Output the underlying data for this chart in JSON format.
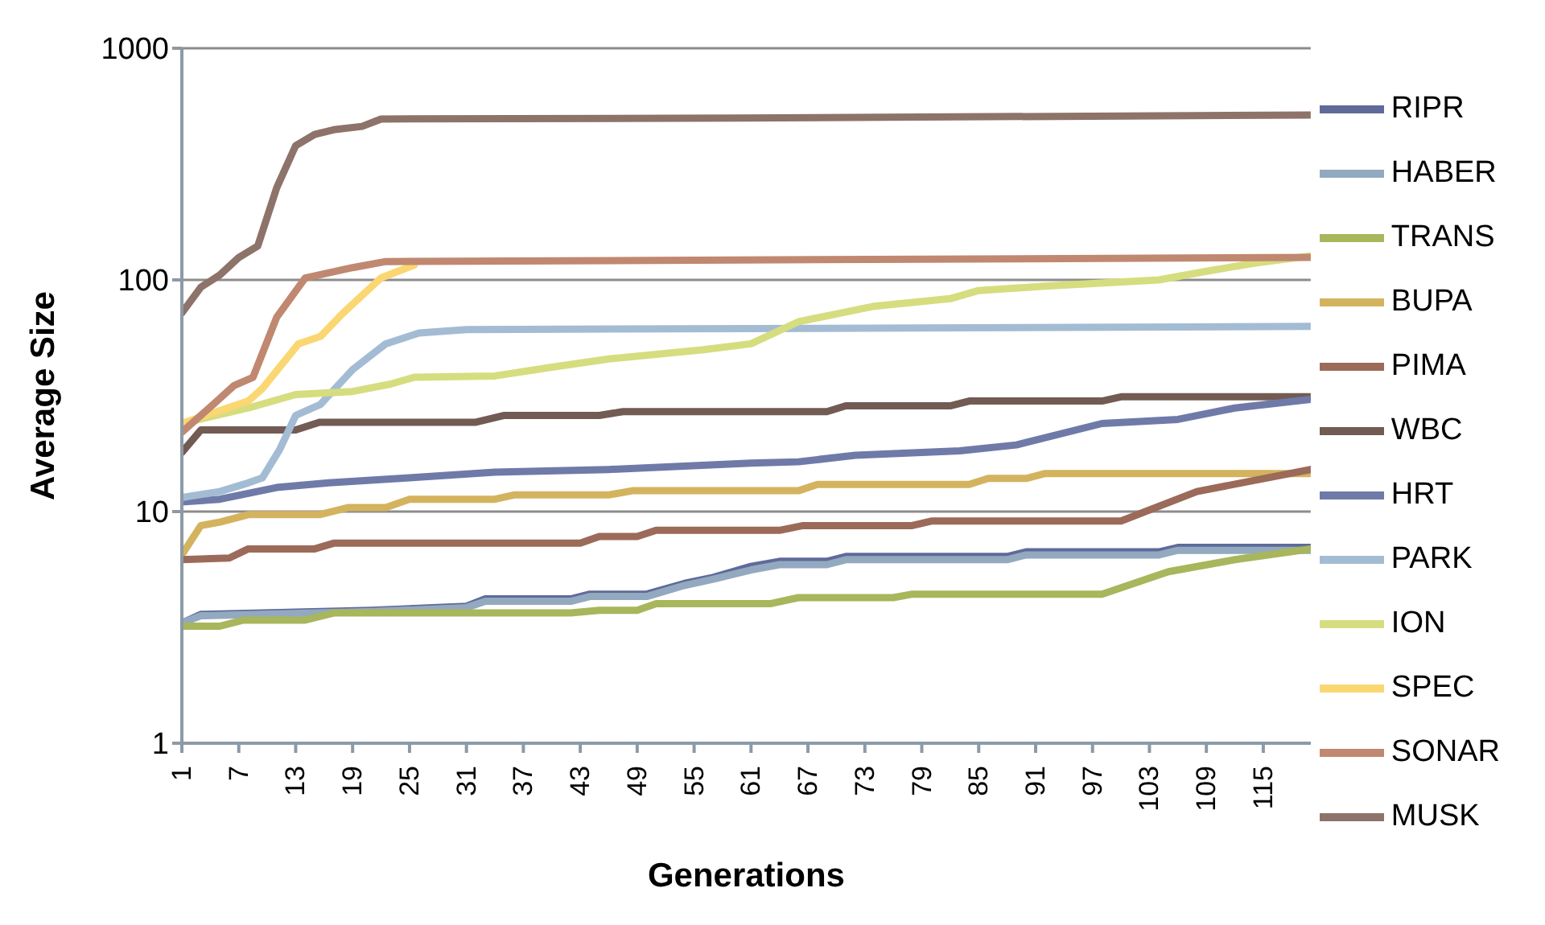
{
  "chart_data": {
    "type": "line",
    "xlabel": "Generations",
    "ylabel": "Average Size",
    "log": "y",
    "grid": "y",
    "legend": "right",
    "marker": "none",
    "line_style": "solid",
    "xlim": [
      1,
      120
    ],
    "xticks": [
      1,
      7,
      13,
      19,
      25,
      31,
      37,
      43,
      49,
      55,
      61,
      67,
      73,
      79,
      85,
      91,
      97,
      103,
      109,
      115
    ],
    "ylim": [
      1,
      1000
    ],
    "yticks": [
      1,
      10,
      100,
      1000
    ],
    "series": [
      {
        "name": "RIPR",
        "color": "#5f6a9a",
        "x": [
          1,
          3,
          21,
          31,
          33,
          42,
          44,
          50,
          54,
          57,
          61,
          64,
          69,
          71,
          88,
          90,
          104,
          106,
          120
        ],
        "values": [
          3.3,
          3.6,
          3.75,
          3.9,
          4.2,
          4.2,
          4.4,
          4.4,
          4.9,
          5.2,
          5.8,
          6.1,
          6.1,
          6.4,
          6.4,
          6.7,
          6.7,
          7,
          7
        ]
      },
      {
        "name": "HABER",
        "color": "#93a9bf",
        "x": [
          1,
          3,
          21,
          31,
          33,
          42,
          44,
          50,
          54,
          57,
          61,
          64,
          69,
          71,
          88,
          90,
          104,
          106,
          120
        ],
        "values": [
          3.3,
          3.55,
          3.7,
          3.85,
          4.1,
          4.1,
          4.3,
          4.3,
          4.8,
          5.1,
          5.6,
          5.9,
          5.9,
          6.2,
          6.2,
          6.5,
          6.5,
          6.8,
          6.8
        ]
      },
      {
        "name": "TRANS",
        "color": "#a8b65c",
        "x": [
          1,
          5,
          7.5,
          14,
          17,
          42,
          45,
          49,
          51,
          63,
          66,
          76,
          78,
          98,
          105,
          112,
          120
        ],
        "values": [
          3.2,
          3.2,
          3.4,
          3.4,
          3.65,
          3.65,
          3.75,
          3.75,
          4,
          4,
          4.25,
          4.25,
          4.4,
          4.4,
          5.5,
          6.2,
          6.9
        ]
      },
      {
        "name": "BUPA",
        "color": "#d4b35f",
        "x": [
          1,
          3,
          5,
          8,
          15.5,
          18.5,
          22.5,
          25,
          34,
          36,
          46,
          48.5,
          66,
          68,
          84,
          86,
          90,
          92,
          120
        ],
        "values": [
          6.5,
          8.7,
          9,
          9.7,
          9.7,
          10.4,
          10.4,
          11.3,
          11.3,
          11.8,
          11.8,
          12.3,
          12.3,
          13.1,
          13.1,
          13.9,
          13.9,
          14.6,
          14.6
        ]
      },
      {
        "name": "PIMA",
        "color": "#9c6a59",
        "x": [
          1,
          6,
          8,
          15,
          17,
          43,
          45,
          49,
          51,
          64,
          66.5,
          78,
          80,
          100,
          108,
          120
        ],
        "values": [
          6.2,
          6.3,
          6.9,
          6.9,
          7.3,
          7.3,
          7.8,
          7.8,
          8.3,
          8.3,
          8.7,
          8.7,
          9.1,
          9.1,
          12.2,
          15.2
        ]
      },
      {
        "name": "WBC",
        "color": "#725b52",
        "x": [
          1,
          3,
          13,
          15.5,
          32,
          35,
          45,
          47.5,
          69,
          71,
          82,
          84,
          98,
          100,
          120
        ],
        "values": [
          18,
          22.5,
          22.5,
          24.3,
          24.3,
          26,
          26,
          27,
          27,
          28.6,
          28.6,
          30,
          30,
          31.3,
          31.3
        ]
      },
      {
        "name": "HRT",
        "color": "#6f7aa8",
        "x": [
          1,
          5,
          11,
          16.5,
          25,
          34,
          46,
          61,
          66,
          72,
          83,
          89,
          98,
          106,
          112,
          120
        ],
        "values": [
          11,
          11.3,
          12.7,
          13.3,
          14,
          14.8,
          15.2,
          16.2,
          16.4,
          17.5,
          18.3,
          19.4,
          24,
          25,
          28,
          30.5
        ]
      },
      {
        "name": "PARK",
        "color": "#a3bcd4",
        "x": [
          1,
          5,
          8,
          9.5,
          11.3,
          13,
          15.6,
          19,
          22.5,
          26,
          31,
          120
        ],
        "values": [
          11.5,
          12.2,
          13.3,
          14,
          18.5,
          26,
          29,
          41,
          53,
          59,
          61,
          63
        ]
      },
      {
        "name": "ION",
        "color": "#d5dd7f",
        "x": [
          1,
          8,
          13,
          19,
          23,
          25.5,
          34,
          40,
          46,
          56,
          61,
          66,
          74,
          82,
          85,
          92,
          104,
          109,
          114,
          120
        ],
        "values": [
          24,
          28,
          32,
          33,
          35.5,
          38,
          38.5,
          42,
          45.6,
          50,
          53,
          66,
          77,
          83,
          90,
          94,
          100,
          109,
          118,
          127
        ]
      },
      {
        "name": "SPEC",
        "color": "#fad772",
        "x": [
          1,
          8,
          9.5,
          13.3,
          15.6,
          18,
          22,
          25.5
        ],
        "values": [
          24,
          30,
          34,
          53,
          57,
          72,
          102,
          116
        ]
      },
      {
        "name": "SONAR",
        "color": "#c08870",
        "x": [
          1,
          4.3,
          6.5,
          8.5,
          11,
          14,
          19,
          22.5,
          120
        ],
        "values": [
          22,
          29,
          35,
          38,
          69,
          102,
          113,
          120,
          125
        ]
      },
      {
        "name": "MUSK",
        "color": "#8d7369",
        "x": [
          1,
          3,
          5,
          7,
          9,
          11,
          13,
          15,
          17,
          20,
          22,
          60,
          120
        ],
        "values": [
          72,
          93,
          105,
          125,
          140,
          250,
          380,
          425,
          445,
          460,
          495,
          500,
          515
        ]
      }
    ]
  }
}
